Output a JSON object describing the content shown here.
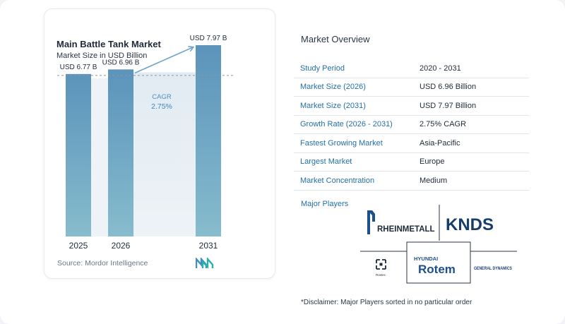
{
  "chart_data": {
    "type": "bar",
    "title": "Main Battle Tank Market",
    "subtitle": "Market Size in USD Billion",
    "categories": [
      "2025",
      "2026",
      "2031"
    ],
    "values": [
      6.77,
      6.96,
      7.97
    ],
    "value_labels": [
      "USD 6.77 B",
      "USD 6.96 B",
      "USD 7.97 B"
    ],
    "cagr": {
      "label": "CAGR",
      "value": "2.75%",
      "from": "2026",
      "to": "2031"
    },
    "ylim": [
      0,
      8.5
    ],
    "grid": false,
    "colors": {
      "bar_top": "#5b93bb",
      "bar_bottom": "#87bccd",
      "band": "#dfe9f1",
      "arrow": "#6fa3c8",
      "dash": "#8896a6"
    }
  },
  "source": "Source:  Mordor Intelligence",
  "brand_logo": "mordor-intelligence-logo",
  "overview": {
    "title": "Market Overview",
    "rows": [
      {
        "key": "Study Period",
        "value": "2020 - 2031"
      },
      {
        "key": "Market Size (2026)",
        "value": "USD 6.96 Billion"
      },
      {
        "key": "Market Size (2031)",
        "value": "USD 7.97 Billion"
      },
      {
        "key": "Growth Rate (2026 - 2031)",
        "value": "2.75% CAGR"
      },
      {
        "key": "Fastest Growing Market",
        "value": "Asia-Pacific"
      },
      {
        "key": "Largest Market",
        "value": "Europe"
      },
      {
        "key": "Market Concentration",
        "value": "Medium"
      }
    ]
  },
  "major_players": {
    "label": "Major Players",
    "logos": [
      {
        "name": "RHEINMETALL"
      },
      {
        "name": "KNDS"
      },
      {
        "name": "Rostec"
      },
      {
        "name": "HYUNDAI Rotem",
        "top": "HYUNDAI",
        "main": "Rotem"
      },
      {
        "name": "GENERAL DYNAMICS"
      }
    ]
  },
  "disclaimer": "*Disclaimer: Major Players sorted in no particular order"
}
